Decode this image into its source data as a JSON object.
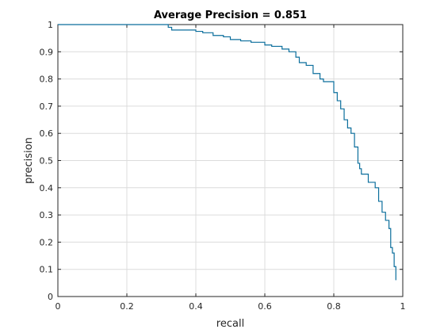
{
  "chart_data": {
    "type": "line",
    "title": "Average Precision = 0.851",
    "xlabel": "recall",
    "ylabel": "precision",
    "xlim": [
      0,
      1
    ],
    "ylim": [
      0,
      1
    ],
    "xticks": [
      "0",
      "0.2",
      "0.4",
      "0.6",
      "0.8",
      "1"
    ],
    "yticks": [
      "0",
      "0.1",
      "0.2",
      "0.3",
      "0.4",
      "0.5",
      "0.6",
      "0.7",
      "0.8",
      "0.9",
      "1"
    ],
    "grid": true,
    "line_color": "#0b6e9c",
    "series": [
      {
        "x": [
          0.0,
          0.32,
          0.32,
          0.33,
          0.33,
          0.4,
          0.4,
          0.42,
          0.42,
          0.45,
          0.45,
          0.48,
          0.48,
          0.5,
          0.5,
          0.53,
          0.53,
          0.56,
          0.56,
          0.6,
          0.6,
          0.62,
          0.62,
          0.65,
          0.65,
          0.67,
          0.67,
          0.69,
          0.69,
          0.7,
          0.7,
          0.72,
          0.72,
          0.74,
          0.74,
          0.76,
          0.76,
          0.77,
          0.77,
          0.8,
          0.8,
          0.81,
          0.81,
          0.82,
          0.82,
          0.83,
          0.83,
          0.84,
          0.84,
          0.85,
          0.85,
          0.86,
          0.86,
          0.87,
          0.87,
          0.875,
          0.875,
          0.88,
          0.88,
          0.9,
          0.9,
          0.92,
          0.92,
          0.93,
          0.93,
          0.94,
          0.94,
          0.95,
          0.95,
          0.96,
          0.96,
          0.965,
          0.965,
          0.97,
          0.97,
          0.975,
          0.975,
          0.98,
          0.98
        ],
        "y": [
          1.0,
          1.0,
          0.99,
          0.99,
          0.98,
          0.98,
          0.975,
          0.975,
          0.97,
          0.97,
          0.96,
          0.96,
          0.955,
          0.955,
          0.945,
          0.945,
          0.94,
          0.94,
          0.935,
          0.935,
          0.925,
          0.925,
          0.92,
          0.92,
          0.91,
          0.91,
          0.9,
          0.9,
          0.88,
          0.88,
          0.86,
          0.86,
          0.85,
          0.85,
          0.82,
          0.82,
          0.8,
          0.8,
          0.79,
          0.79,
          0.75,
          0.75,
          0.72,
          0.72,
          0.69,
          0.69,
          0.65,
          0.65,
          0.62,
          0.62,
          0.6,
          0.6,
          0.55,
          0.55,
          0.49,
          0.49,
          0.47,
          0.47,
          0.45,
          0.45,
          0.42,
          0.42,
          0.4,
          0.4,
          0.35,
          0.35,
          0.31,
          0.31,
          0.28,
          0.28,
          0.25,
          0.25,
          0.18,
          0.18,
          0.16,
          0.16,
          0.11,
          0.11,
          0.06
        ]
      }
    ]
  }
}
